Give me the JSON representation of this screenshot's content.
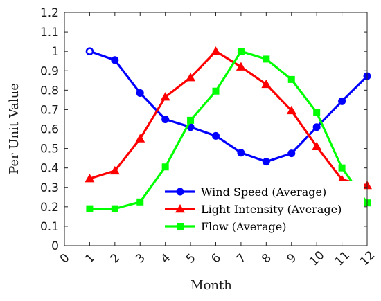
{
  "chart_data": {
    "type": "line",
    "xlabel": "Month",
    "ylabel": "Per Unit Value",
    "xlim": [
      0,
      12
    ],
    "ylim": [
      0,
      1.2
    ],
    "xticks": [
      "0",
      "1",
      "2",
      "3",
      "4",
      "5",
      "6",
      "7",
      "8",
      "9",
      "10",
      "11",
      "12"
    ],
    "yticks": [
      "0",
      "0.1",
      "0.2",
      "0.3",
      "0.4",
      "0.5",
      "0.6",
      "0.7",
      "0.8",
      "0.9",
      "1",
      "1.1",
      "1.2"
    ],
    "x": [
      1,
      2,
      3,
      4,
      5,
      6,
      7,
      8,
      9,
      10,
      11,
      12
    ],
    "grid": false,
    "legend_position": "bottom-right",
    "series": [
      {
        "name": "Wind Speed (Average)",
        "color": "#0000ff",
        "marker": "circle",
        "values": [
          1.0,
          0.955,
          0.785,
          0.65,
          0.61,
          0.565,
          0.478,
          0.432,
          0.475,
          0.61,
          0.743,
          0.872
        ]
      },
      {
        "name": "Light Intensity (Average)",
        "color": "#ff0000",
        "marker": "triangle",
        "values": [
          0.345,
          0.385,
          0.55,
          0.765,
          0.865,
          1.0,
          0.92,
          0.83,
          0.695,
          0.51,
          0.34,
          0.31
        ]
      },
      {
        "name": "Flow (Average)",
        "color": "#00ff00",
        "marker": "square",
        "values": [
          0.19,
          0.19,
          0.225,
          0.405,
          0.645,
          0.795,
          1.0,
          0.96,
          0.855,
          0.685,
          0.4,
          0.22
        ]
      }
    ]
  }
}
